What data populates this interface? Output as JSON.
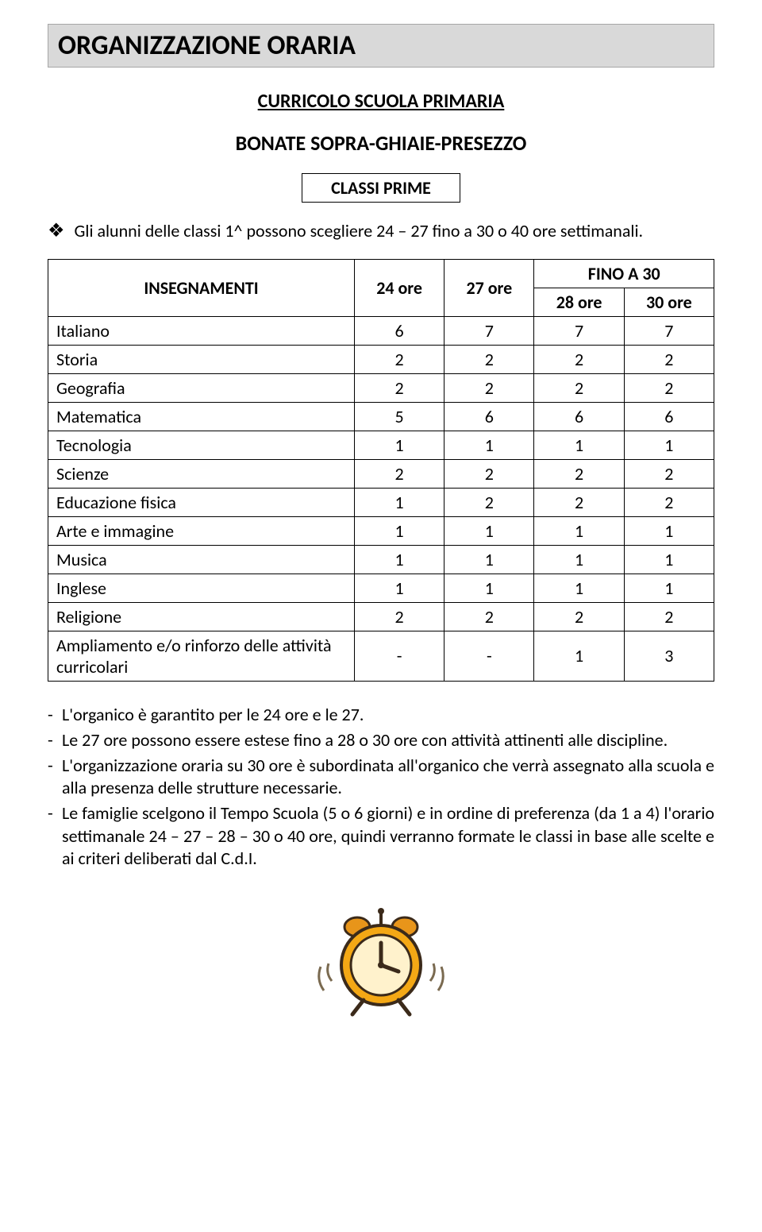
{
  "header": {
    "title": "ORGANIZZAZIONE ORARIA",
    "subtitle": "CURRICOLO SCUOLA PRIMARIA",
    "schools": "BONATE SOPRA-GHIAIE-PRESEZZO",
    "class_label": "CLASSI PRIME"
  },
  "intro": {
    "bullet": "❖",
    "text": "Gli alunni delle classi 1^ possono scegliere 24 – 27 fino a 30 o 40 ore settimanali."
  },
  "table": {
    "head": {
      "subjects": "INSEGNAMENTI",
      "col1": "24 ore",
      "col2": "27 ore",
      "fino": "FINO A 30",
      "sub1": "28 ore",
      "sub2": "30 ore"
    },
    "rows": [
      {
        "subject": "Italiano",
        "c1": "6",
        "c2": "7",
        "c3": "7",
        "c4": "7"
      },
      {
        "subject": "Storia",
        "c1": "2",
        "c2": "2",
        "c3": "2",
        "c4": "2"
      },
      {
        "subject": "Geografia",
        "c1": "2",
        "c2": "2",
        "c3": "2",
        "c4": "2"
      },
      {
        "subject": "Matematica",
        "c1": "5",
        "c2": "6",
        "c3": "6",
        "c4": "6"
      },
      {
        "subject": "Tecnologia",
        "c1": "1",
        "c2": "1",
        "c3": "1",
        "c4": "1"
      },
      {
        "subject": "Scienze",
        "c1": "2",
        "c2": "2",
        "c3": "2",
        "c4": "2"
      },
      {
        "subject": "Educazione fisica",
        "c1": "1",
        "c2": "2",
        "c3": "2",
        "c4": "2"
      },
      {
        "subject": "Arte e immagine",
        "c1": "1",
        "c2": "1",
        "c3": "1",
        "c4": "1"
      },
      {
        "subject": "Musica",
        "c1": "1",
        "c2": "1",
        "c3": "1",
        "c4": "1"
      },
      {
        "subject": "Inglese",
        "c1": "1",
        "c2": "1",
        "c3": "1",
        "c4": "1"
      },
      {
        "subject": "Religione",
        "c1": "2",
        "c2": "2",
        "c3": "2",
        "c4": "2"
      },
      {
        "subject": "Ampliamento e/o rinforzo delle attività curricolari",
        "c1": "-",
        "c2": "-",
        "c3": "1",
        "c4": "3"
      }
    ]
  },
  "notes": {
    "items": [
      "L'organico è garantito per le 24 ore e le 27.",
      "Le 27 ore possono essere estese fino a 28 o 30 ore con attività attinenti alle discipline.",
      "L'organizzazione oraria su 30 ore è subordinata all'organico che verrà assegnato alla scuola e alla presenza delle strutture necessarie.",
      "Le famiglie scelgono il Tempo Scuola (5 o 6 giorni) e in ordine di preferenza (da 1 a 4) l'orario settimanale 24 – 27 – 28 – 30 o 40 ore, quindi verranno formate le classi in base alle scelte e ai criteri deliberati dal C.d.I."
    ]
  },
  "icon": {
    "clock_body": "#f4a815",
    "clock_face": "#fff2cc",
    "clock_outline": "#3b2a1a",
    "bells": "#e8951a",
    "hands": "#3b2a1a",
    "motion": "#7a6a50"
  }
}
